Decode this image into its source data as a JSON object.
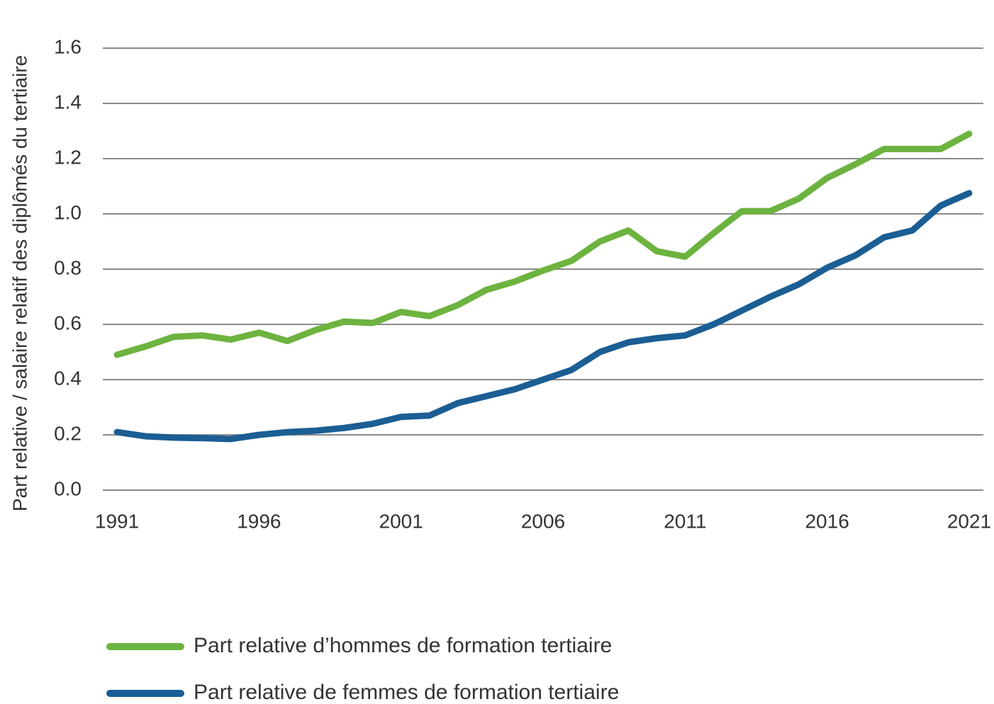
{
  "chart_data": {
    "type": "line",
    "y_label": "Part relative / salaire relatif des diplômés du tertiaire",
    "x": [
      1991,
      1992,
      1993,
      1994,
      1995,
      1996,
      1997,
      1998,
      1999,
      2000,
      2001,
      2002,
      2003,
      2004,
      2005,
      2006,
      2007,
      2008,
      2009,
      2010,
      2011,
      2012,
      2013,
      2014,
      2015,
      2016,
      2017,
      2018,
      2019,
      2020,
      2021
    ],
    "series": [
      {
        "name": "Part relative d’hommes de formation tertiaire",
        "color": "#6db33f",
        "values": [
          0.49,
          0.52,
          0.555,
          0.56,
          0.545,
          0.57,
          0.54,
          0.58,
          0.61,
          0.605,
          0.645,
          0.63,
          0.67,
          0.725,
          0.755,
          0.795,
          0.83,
          0.9,
          0.94,
          0.865,
          0.845,
          0.93,
          1.01,
          1.01,
          1.055,
          1.13,
          1.18,
          1.235,
          1.235,
          1.235,
          1.29
        ]
      },
      {
        "name": "Part relative de femmes de formation tertiaire",
        "color": "#1b5e94",
        "values": [
          0.21,
          0.195,
          0.19,
          0.188,
          0.185,
          0.2,
          0.21,
          0.215,
          0.225,
          0.24,
          0.265,
          0.27,
          0.315,
          0.34,
          0.365,
          0.4,
          0.435,
          0.5,
          0.535,
          0.55,
          0.56,
          0.6,
          0.65,
          0.7,
          0.745,
          0.805,
          0.85,
          0.915,
          0.94,
          1.03,
          1.075
        ]
      }
    ],
    "xlim": [
      1990.5,
      2021.5
    ],
    "xticks": [
      1991,
      1996,
      2001,
      2006,
      2011,
      2016,
      2021
    ],
    "ylim": [
      0,
      1.6
    ],
    "yticks": [
      {
        "value": 0,
        "label": "0.0"
      },
      0.2,
      0.4,
      0.6,
      0.8,
      {
        "value": 1,
        "label": "1.0"
      },
      1.2,
      1.4,
      1.6
    ],
    "grid": true,
    "legend": "bottom"
  }
}
